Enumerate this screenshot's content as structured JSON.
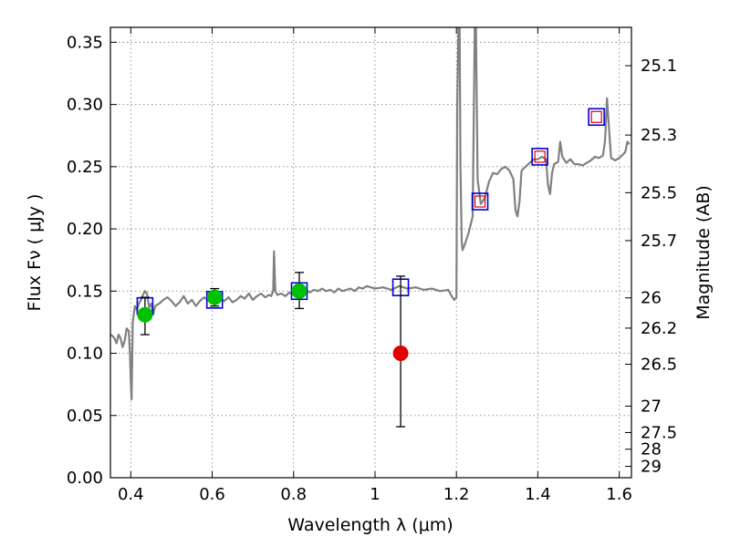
{
  "chart_data": {
    "type": "scatter",
    "title": "",
    "xlabel": "Wavelength  λ (μm)",
    "ylabel": "Flux  Fν  ( μJy )",
    "y2label": "Magnitude (AB)",
    "xlim": [
      0.35,
      1.63
    ],
    "ylim": [
      0.0,
      0.362
    ],
    "grid": true,
    "x_ticks": [
      {
        "value": 0.4,
        "label": "0.4"
      },
      {
        "value": 0.6,
        "label": "0.6"
      },
      {
        "value": 0.8,
        "label": "0.8"
      },
      {
        "value": 1.0,
        "label": "1"
      },
      {
        "value": 1.2,
        "label": "1.2"
      },
      {
        "value": 1.4,
        "label": "1.4"
      },
      {
        "value": 1.6,
        "label": "1.6"
      }
    ],
    "y_ticks": [
      {
        "value": 0.0,
        "label": "0.00"
      },
      {
        "value": 0.05,
        "label": "0.05"
      },
      {
        "value": 0.1,
        "label": "0.10"
      },
      {
        "value": 0.15,
        "label": "0.15"
      },
      {
        "value": 0.2,
        "label": "0.20"
      },
      {
        "value": 0.25,
        "label": "0.25"
      },
      {
        "value": 0.3,
        "label": "0.30"
      },
      {
        "value": 0.35,
        "label": "0.35"
      }
    ],
    "mag_ticks": [
      {
        "value": 25.1,
        "label": "25.1"
      },
      {
        "value": 25.3,
        "label": "25.3"
      },
      {
        "value": 25.5,
        "label": "25.5"
      },
      {
        "value": 25.7,
        "label": "25.7"
      },
      {
        "value": 26.0,
        "label": "26"
      },
      {
        "value": 26.2,
        "label": "26.2"
      },
      {
        "value": 26.5,
        "label": "26.5"
      },
      {
        "value": 27.0,
        "label": "27"
      },
      {
        "value": 27.5,
        "label": "27.5"
      },
      {
        "value": 28.0,
        "label": "28"
      },
      {
        "value": 29.0,
        "label": "29"
      }
    ],
    "colors": {
      "model": "#808080",
      "measured": "#00c000",
      "upper_limit": "#e00000",
      "model_box": "#0000dd",
      "model_box_inner": "#dd0000",
      "errorbar": "#000000"
    },
    "model_spectrum": [
      [
        0.35,
        0.115
      ],
      [
        0.355,
        0.114
      ],
      [
        0.36,
        0.112
      ],
      [
        0.365,
        0.108
      ],
      [
        0.37,
        0.115
      ],
      [
        0.375,
        0.112
      ],
      [
        0.38,
        0.105
      ],
      [
        0.385,
        0.11
      ],
      [
        0.39,
        0.12
      ],
      [
        0.395,
        0.118
      ],
      [
        0.398,
        0.1
      ],
      [
        0.4,
        0.078
      ],
      [
        0.402,
        0.063
      ],
      [
        0.405,
        0.125
      ],
      [
        0.41,
        0.138
      ],
      [
        0.415,
        0.135
      ],
      [
        0.42,
        0.14
      ],
      [
        0.425,
        0.143
      ],
      [
        0.43,
        0.147
      ],
      [
        0.435,
        0.15
      ],
      [
        0.44,
        0.148
      ],
      [
        0.445,
        0.137
      ],
      [
        0.45,
        0.14
      ],
      [
        0.455,
        0.131
      ],
      [
        0.46,
        0.138
      ],
      [
        0.47,
        0.14
      ],
      [
        0.48,
        0.143
      ],
      [
        0.49,
        0.145
      ],
      [
        0.5,
        0.142
      ],
      [
        0.51,
        0.138
      ],
      [
        0.52,
        0.141
      ],
      [
        0.53,
        0.146
      ],
      [
        0.54,
        0.14
      ],
      [
        0.55,
        0.143
      ],
      [
        0.56,
        0.138
      ],
      [
        0.57,
        0.142
      ],
      [
        0.58,
        0.145
      ],
      [
        0.59,
        0.143
      ],
      [
        0.6,
        0.146
      ],
      [
        0.61,
        0.141
      ],
      [
        0.62,
        0.144
      ],
      [
        0.63,
        0.142
      ],
      [
        0.64,
        0.145
      ],
      [
        0.65,
        0.141
      ],
      [
        0.66,
        0.143
      ],
      [
        0.67,
        0.146
      ],
      [
        0.68,
        0.144
      ],
      [
        0.69,
        0.148
      ],
      [
        0.7,
        0.143
      ],
      [
        0.71,
        0.146
      ],
      [
        0.72,
        0.148
      ],
      [
        0.73,
        0.145
      ],
      [
        0.74,
        0.147
      ],
      [
        0.745,
        0.146
      ],
      [
        0.75,
        0.15
      ],
      [
        0.752,
        0.182
      ],
      [
        0.755,
        0.15
      ],
      [
        0.76,
        0.147
      ],
      [
        0.77,
        0.148
      ],
      [
        0.78,
        0.146
      ],
      [
        0.79,
        0.149
      ],
      [
        0.8,
        0.147
      ],
      [
        0.81,
        0.15
      ],
      [
        0.82,
        0.148
      ],
      [
        0.83,
        0.151
      ],
      [
        0.84,
        0.149
      ],
      [
        0.85,
        0.151
      ],
      [
        0.86,
        0.15
      ],
      [
        0.87,
        0.152
      ],
      [
        0.88,
        0.15
      ],
      [
        0.89,
        0.151
      ],
      [
        0.9,
        0.149
      ],
      [
        0.91,
        0.152
      ],
      [
        0.92,
        0.15
      ],
      [
        0.93,
        0.151
      ],
      [
        0.94,
        0.152
      ],
      [
        0.95,
        0.15
      ],
      [
        0.96,
        0.153
      ],
      [
        0.97,
        0.152
      ],
      [
        0.98,
        0.154
      ],
      [
        0.99,
        0.153
      ],
      [
        1.0,
        0.152
      ],
      [
        1.02,
        0.153
      ],
      [
        1.04,
        0.151
      ],
      [
        1.06,
        0.154
      ],
      [
        1.08,
        0.152
      ],
      [
        1.1,
        0.153
      ],
      [
        1.12,
        0.151
      ],
      [
        1.14,
        0.152
      ],
      [
        1.16,
        0.15
      ],
      [
        1.18,
        0.151
      ],
      [
        1.19,
        0.145
      ],
      [
        1.195,
        0.143
      ],
      [
        1.2,
        0.145
      ],
      [
        1.202,
        0.3
      ],
      [
        1.205,
        0.362
      ],
      [
        1.208,
        0.362
      ],
      [
        1.21,
        0.25
      ],
      [
        1.213,
        0.19
      ],
      [
        1.215,
        0.183
      ],
      [
        1.22,
        0.187
      ],
      [
        1.23,
        0.197
      ],
      [
        1.24,
        0.21
      ],
      [
        1.245,
        0.362
      ],
      [
        1.248,
        0.362
      ],
      [
        1.252,
        0.24
      ],
      [
        1.26,
        0.22
      ],
      [
        1.27,
        0.225
      ],
      [
        1.28,
        0.238
      ],
      [
        1.29,
        0.245
      ],
      [
        1.3,
        0.244
      ],
      [
        1.31,
        0.248
      ],
      [
        1.32,
        0.25
      ],
      [
        1.33,
        0.247
      ],
      [
        1.34,
        0.24
      ],
      [
        1.345,
        0.215
      ],
      [
        1.35,
        0.21
      ],
      [
        1.355,
        0.222
      ],
      [
        1.36,
        0.247
      ],
      [
        1.37,
        0.25
      ],
      [
        1.38,
        0.253
      ],
      [
        1.39,
        0.256
      ],
      [
        1.4,
        0.256
      ],
      [
        1.41,
        0.258
      ],
      [
        1.42,
        0.256
      ],
      [
        1.425,
        0.235
      ],
      [
        1.43,
        0.228
      ],
      [
        1.435,
        0.245
      ],
      [
        1.44,
        0.252
      ],
      [
        1.45,
        0.254
      ],
      [
        1.455,
        0.27
      ],
      [
        1.46,
        0.258
      ],
      [
        1.47,
        0.253
      ],
      [
        1.48,
        0.256
      ],
      [
        1.49,
        0.252
      ],
      [
        1.5,
        0.252
      ],
      [
        1.51,
        0.251
      ],
      [
        1.52,
        0.253
      ],
      [
        1.53,
        0.255
      ],
      [
        1.54,
        0.258
      ],
      [
        1.55,
        0.257
      ],
      [
        1.56,
        0.259
      ],
      [
        1.565,
        0.27
      ],
      [
        1.57,
        0.305
      ],
      [
        1.575,
        0.28
      ],
      [
        1.58,
        0.257
      ],
      [
        1.59,
        0.255
      ],
      [
        1.6,
        0.257
      ],
      [
        1.61,
        0.26
      ],
      [
        1.615,
        0.262
      ],
      [
        1.62,
        0.27
      ],
      [
        1.625,
        0.268
      ]
    ],
    "model_boxes": [
      {
        "x": 0.435,
        "y": 0.138,
        "inner": false
      },
      {
        "x": 0.606,
        "y": 0.143,
        "inner": false
      },
      {
        "x": 0.814,
        "y": 0.15,
        "inner": false
      },
      {
        "x": 1.063,
        "y": 0.153,
        "inner": false
      },
      {
        "x": 1.258,
        "y": 0.222,
        "inner": true
      },
      {
        "x": 1.405,
        "y": 0.258,
        "inner": true
      },
      {
        "x": 1.544,
        "y": 0.29,
        "inner": true
      }
    ],
    "measured_points": [
      {
        "x": 0.435,
        "y": 0.131,
        "yerr": [
          0.016,
          0.014
        ]
      },
      {
        "x": 0.606,
        "y": 0.145,
        "yerr": [
          0.007,
          0.007
        ]
      },
      {
        "x": 0.814,
        "y": 0.15,
        "yerr": [
          0.014,
          0.015
        ]
      }
    ],
    "upper_limit_points": [
      {
        "x": 1.063,
        "y": 0.1,
        "yerr": [
          0.059,
          0.062
        ]
      }
    ]
  }
}
